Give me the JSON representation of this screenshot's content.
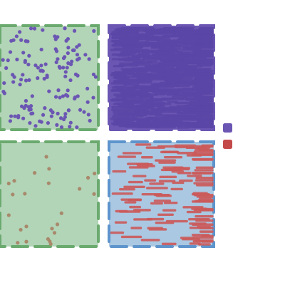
{
  "figure": {
    "panels": [
      {
        "id": "panel-top-left",
        "background": "#b2d4b7",
        "border_color": "#6aaa6e",
        "mark": "dot",
        "mark_color": "#6b56b3",
        "density": "sparse"
      },
      {
        "id": "panel-top-right",
        "background": "#6b56b3",
        "border_color": "#6b56b3",
        "mark": "dash",
        "mark_color": "#5a46a6",
        "density": "dense"
      },
      {
        "id": "panel-bottom-left",
        "background": "#b2d4b7",
        "border_color": "#6aaa6e",
        "mark": "dot",
        "mark_color": "#a8896b",
        "density": "very-sparse"
      },
      {
        "id": "panel-bottom-right",
        "background": "#aac8e2",
        "border_color": "#5e94cc",
        "mark": "dash",
        "mark_color": "#cc5a5a",
        "density": "medium"
      }
    ],
    "legend": [
      {
        "id": "legend-purple",
        "color": "#6b56b3"
      },
      {
        "id": "legend-red",
        "color": "#c44a4a"
      }
    ]
  }
}
